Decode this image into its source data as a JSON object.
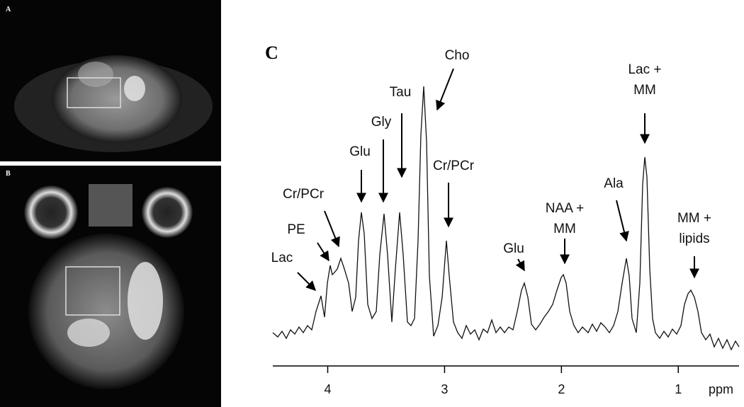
{
  "panels": {
    "a": {
      "label": "A"
    },
    "b": {
      "label": "B"
    }
  },
  "chart_data": {
    "type": "spectrum",
    "panel_label": "C",
    "x_unit": "ppm",
    "xlim": [
      4.47,
      0.48
    ],
    "xticks": [
      4,
      3,
      2,
      1
    ],
    "annotations": [
      {
        "lines": [
          "Cho"
        ]
      },
      {
        "lines": [
          "Tau"
        ]
      },
      {
        "lines": [
          "Gly"
        ]
      },
      {
        "lines": [
          "Glu"
        ]
      },
      {
        "lines": [
          "Cr/PCr"
        ]
      },
      {
        "lines": [
          "PE"
        ]
      },
      {
        "lines": [
          "Lac"
        ]
      },
      {
        "lines": [
          "Cr/PCr"
        ]
      },
      {
        "lines": [
          "Glu"
        ]
      },
      {
        "lines": [
          "NAA +",
          "MM"
        ]
      },
      {
        "lines": [
          "Ala"
        ]
      },
      {
        "lines": [
          "Lac +",
          "MM"
        ]
      },
      {
        "lines": [
          "MM +",
          "lipids"
        ]
      }
    ]
  }
}
